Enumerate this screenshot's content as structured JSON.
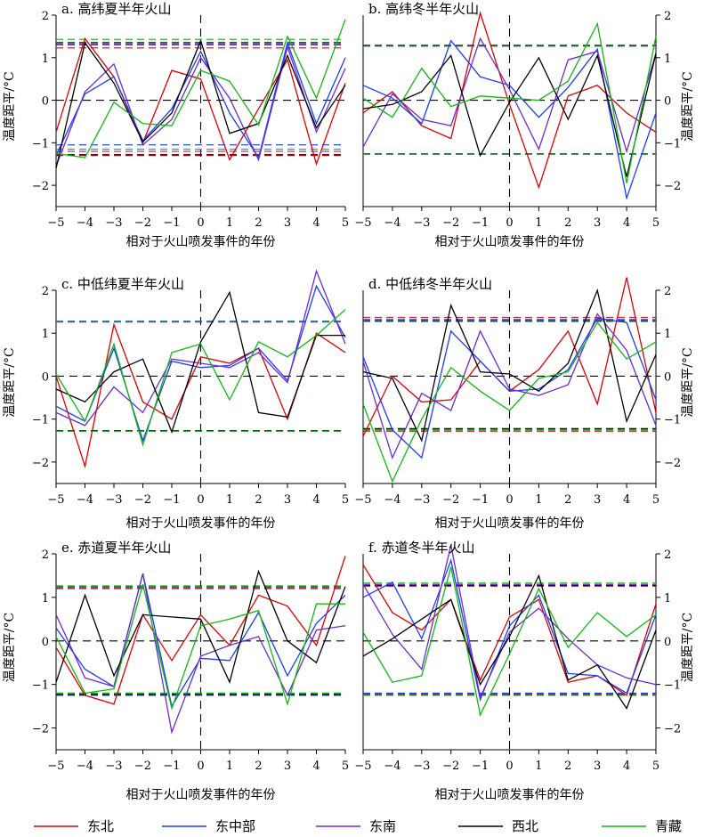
{
  "figure": {
    "colors": {
      "东北": "#e00000",
      "东中部": "#1a3cff",
      "东南": "#6a2bd6",
      "西北": "#000000",
      "青藏": "#12b812"
    },
    "legend": [
      "东北",
      "东中部",
      "东南",
      "西北",
      "青藏"
    ],
    "xlabel": "相对于火山喷发事件的年份",
    "ylabel": "温度距平/°C"
  },
  "chart_data": [
    {
      "type": "line",
      "title": "a. 高纬夏半年火山",
      "x": [
        -5,
        -4,
        -3,
        -2,
        -1,
        0,
        1,
        2,
        3,
        4,
        5
      ],
      "xticks": [
        "−5",
        "−4",
        "−3",
        "−2",
        "−1",
        "0",
        "1",
        "2",
        "3",
        "4",
        "5"
      ],
      "ylim": [
        -2.5,
        2
      ],
      "yticks": [
        "−2",
        "−1",
        "0",
        "1",
        "2"
      ],
      "yaxis_side": "left",
      "series": [
        {
          "name": "东北",
          "values": [
            -0.75,
            1.45,
            0.55,
            -1.0,
            0.7,
            0.5,
            -1.4,
            -0.2,
            0.95,
            -1.5,
            0.4
          ],
          "upper": 1.23,
          "lower": -1.3
        },
        {
          "name": "东中部",
          "values": [
            -1.3,
            0.15,
            0.55,
            -0.95,
            -0.2,
            1.15,
            -0.3,
            -1.35,
            1.35,
            -0.55,
            1.0
          ],
          "upper": 1.36,
          "lower": -1.05
        },
        {
          "name": "东南",
          "values": [
            -1.55,
            0.2,
            0.85,
            -1.05,
            -0.45,
            1.0,
            0.05,
            -1.4,
            1.25,
            -0.75,
            0.75
          ],
          "upper": 1.3,
          "lower": -1.2
        },
        {
          "name": "西北",
          "values": [
            -1.6,
            1.35,
            0.4,
            -0.98,
            -0.3,
            1.4,
            -0.78,
            -0.55,
            1.05,
            -0.65,
            0.35
          ],
          "upper": 1.33,
          "lower": -1.28
        },
        {
          "name": "青藏",
          "values": [
            -1.25,
            -1.35,
            -0.05,
            -0.55,
            -0.6,
            0.7,
            0.45,
            -0.58,
            1.5,
            0.05,
            1.9
          ],
          "upper": 1.43,
          "lower": -1.15
        }
      ]
    },
    {
      "type": "line",
      "title": "b. 高纬冬半年火山",
      "x": [
        -5,
        -4,
        -3,
        -2,
        -1,
        0,
        1,
        2,
        3,
        4,
        5
      ],
      "xticks": [
        "−5",
        "−4",
        "−3",
        "−2",
        "−1",
        "0",
        "1",
        "2",
        "3",
        "4",
        "5"
      ],
      "ylim": [
        -2.5,
        2
      ],
      "yticks": [
        "−2",
        "−1",
        "0",
        "1",
        "2"
      ],
      "yaxis_side": "right",
      "series": [
        {
          "name": "东北",
          "values": [
            -0.3,
            0.2,
            -0.6,
            -0.9,
            2.05,
            -0.1,
            -2.05,
            0.1,
            0.35,
            -0.3,
            -0.75
          ],
          "upper": 1.28,
          "lower": -1.27
        },
        {
          "name": "东中部",
          "values": [
            0.35,
            0.05,
            -0.55,
            1.4,
            0.55,
            0.35,
            -0.4,
            0.3,
            1.2,
            -2.3,
            -0.3
          ],
          "upper": 1.27,
          "lower": -1.26
        },
        {
          "name": "东南",
          "values": [
            -1.1,
            0.15,
            -0.45,
            -0.6,
            1.45,
            0.25,
            -1.15,
            0.95,
            1.15,
            -1.2,
            1.1
          ],
          "upper": 1.28,
          "lower": -1.27
        },
        {
          "name": "西北",
          "values": [
            -0.2,
            -0.1,
            0.2,
            1.05,
            -1.3,
            -0.05,
            1.0,
            -0.45,
            1.05,
            -1.8,
            1.1
          ],
          "upper": 1.29,
          "lower": -1.26
        },
        {
          "name": "青藏",
          "values": [
            0.05,
            -0.4,
            0.75,
            -0.15,
            0.1,
            0.05,
            0.0,
            0.45,
            1.8,
            -1.95,
            1.5
          ],
          "upper": 1.27,
          "lower": -1.27
        }
      ]
    },
    {
      "type": "line",
      "title": "c. 中低纬夏半年火山",
      "x": [
        -5,
        -4,
        -3,
        -2,
        -1,
        0,
        1,
        2,
        3,
        4,
        5
      ],
      "xticks": [
        "−5",
        "−4",
        "−3",
        "−2",
        "−1",
        "0",
        "1",
        "2",
        "3",
        "4",
        "5"
      ],
      "ylim": [
        -2.5,
        2
      ],
      "yticks": [
        "−2",
        "−1",
        "0",
        "1",
        "2"
      ],
      "yaxis_side": "left",
      "series": [
        {
          "name": "东北",
          "values": [
            0.0,
            -2.1,
            1.2,
            -0.6,
            -1.0,
            0.45,
            0.3,
            0.65,
            -1.0,
            1.0,
            0.55
          ],
          "upper": 1.27,
          "lower": -1.27
        },
        {
          "name": "东中部",
          "values": [
            -0.7,
            -1.05,
            0.65,
            -1.5,
            0.35,
            0.2,
            0.25,
            0.65,
            -0.1,
            2.1,
            0.9
          ],
          "upper": 1.28,
          "lower": -1.27
        },
        {
          "name": "东南",
          "values": [
            -0.85,
            -1.15,
            -0.25,
            -0.85,
            0.4,
            0.3,
            0.2,
            0.55,
            -0.15,
            2.45,
            0.75
          ],
          "upper": 1.26,
          "lower": -1.28
        },
        {
          "name": "西北",
          "values": [
            -0.3,
            -0.6,
            0.1,
            0.4,
            -1.3,
            0.8,
            1.95,
            -0.85,
            -0.95,
            0.95,
            0.95
          ],
          "upper": 1.27,
          "lower": -1.27
        },
        {
          "name": "青藏",
          "values": [
            0.05,
            -1.05,
            0.75,
            -1.6,
            0.55,
            0.75,
            -0.55,
            0.8,
            0.45,
            0.95,
            1.55
          ],
          "upper": 1.27,
          "lower": -1.28
        }
      ]
    },
    {
      "type": "line",
      "title": "d. 中低纬冬半年火山",
      "x": [
        -5,
        -4,
        -3,
        -2,
        -1,
        0,
        1,
        2,
        3,
        4,
        5
      ],
      "xticks": [
        "−5",
        "−4",
        "−3",
        "−2",
        "−1",
        "0",
        "1",
        "2",
        "3",
        "4",
        "5"
      ],
      "ylim": [
        -2.5,
        2
      ],
      "yticks": [
        "−2",
        "−1",
        "0",
        "1",
        "2"
      ],
      "yaxis_side": "right",
      "series": [
        {
          "name": "东北",
          "values": [
            -1.4,
            0.0,
            -0.6,
            -0.55,
            0.35,
            -0.35,
            0.15,
            1.05,
            -0.65,
            2.3,
            -0.85
          ],
          "upper": 1.37,
          "lower": -1.28
        },
        {
          "name": "东中部",
          "values": [
            0.45,
            -1.25,
            -1.9,
            1.05,
            0.35,
            -0.35,
            -0.3,
            0.15,
            1.35,
            1.25,
            -0.55
          ],
          "upper": 1.32,
          "lower": -1.25
        },
        {
          "name": "东南",
          "values": [
            0.35,
            -1.9,
            -0.4,
            -0.8,
            1.05,
            -0.3,
            -0.45,
            -0.2,
            1.45,
            0.6,
            -1.15
          ],
          "upper": 1.3,
          "lower": -1.23
        },
        {
          "name": "西北",
          "values": [
            0.1,
            -0.05,
            -1.5,
            1.65,
            0.1,
            0.05,
            -0.35,
            0.3,
            2.0,
            -1.05,
            0.5
          ],
          "upper": 1.28,
          "lower": -1.22
        },
        {
          "name": "青藏",
          "values": [
            -0.65,
            -2.45,
            -1.0,
            0.2,
            -0.35,
            -0.8,
            -0.05,
            0.1,
            1.25,
            0.4,
            0.8
          ],
          "upper": 1.27,
          "lower": -1.25
        }
      ]
    },
    {
      "type": "line",
      "title": "e. 赤道夏半年火山",
      "x": [
        -5,
        -4,
        -3,
        -2,
        -1,
        0,
        1,
        2,
        3,
        4,
        5
      ],
      "xticks": [
        "−5",
        "−4",
        "−3",
        "−2",
        "−1",
        "0",
        "1",
        "2",
        "3",
        "4",
        "5"
      ],
      "ylim": [
        -2.5,
        2
      ],
      "yticks": [
        "−2",
        "−1",
        "0",
        "1",
        "2"
      ],
      "yaxis_side": "left",
      "series": [
        {
          "name": "东北",
          "values": [
            -0.15,
            -1.25,
            -1.45,
            0.6,
            -0.45,
            0.6,
            -0.1,
            1.05,
            0.8,
            -0.1,
            1.95
          ],
          "upper": 1.2,
          "lower": -1.2
        },
        {
          "name": "东中部",
          "values": [
            0.3,
            -0.65,
            -1.05,
            1.55,
            -1.5,
            -0.4,
            -0.45,
            0.65,
            -0.8,
            0.4,
            1.05
          ],
          "upper": 1.23,
          "lower": -1.25
        },
        {
          "name": "东南",
          "values": [
            0.6,
            -0.85,
            -1.05,
            1.55,
            -2.1,
            -0.35,
            -0.1,
            0.1,
            -1.25,
            0.25,
            0.35
          ],
          "upper": 1.23,
          "lower": -1.22
        },
        {
          "name": "西北",
          "values": [
            -0.95,
            1.05,
            -0.8,
            0.6,
            0.55,
            0.5,
            -0.95,
            1.6,
            0.0,
            -0.5,
            1.25
          ],
          "upper": 1.26,
          "lower": -1.23
        },
        {
          "name": "青藏",
          "values": [
            0.1,
            -1.2,
            -1.1,
            1.3,
            -1.55,
            0.35,
            0.5,
            0.7,
            -1.45,
            0.85,
            0.85
          ],
          "upper": 1.25,
          "lower": -1.2
        }
      ]
    },
    {
      "type": "line",
      "title": "f. 赤道冬半年火山",
      "x": [
        -5,
        -4,
        -3,
        -2,
        -1,
        0,
        1,
        2,
        3,
        4,
        5
      ],
      "xticks": [
        "−5",
        "−4",
        "−3",
        "−2",
        "−1",
        "0",
        "1",
        "2",
        "3",
        "4",
        "5"
      ],
      "ylim": [
        -2.5,
        2
      ],
      "yticks": [
        "−2",
        "−1",
        "0",
        "1",
        "2"
      ],
      "yaxis_side": "right",
      "series": [
        {
          "name": "东北",
          "values": [
            1.75,
            0.65,
            0.25,
            0.95,
            -0.9,
            0.55,
            0.95,
            -0.95,
            -0.8,
            -1.25,
            0.85
          ],
          "upper": 1.26,
          "lower": -1.23
        },
        {
          "name": "东中部",
          "values": [
            1.0,
            1.35,
            0.05,
            1.85,
            -1.35,
            0.35,
            1.05,
            -0.75,
            -0.8,
            -1.2,
            0.6
          ],
          "upper": 1.28,
          "lower": -1.2
        },
        {
          "name": "东南",
          "values": [
            1.3,
            0.15,
            -0.65,
            2.2,
            -1.3,
            0.2,
            0.75,
            0.05,
            -0.55,
            -0.85,
            -1.0
          ],
          "upper": 1.3,
          "lower": -1.22
        },
        {
          "name": "西北",
          "values": [
            -0.35,
            0.05,
            0.5,
            0.95,
            -1.0,
            0.1,
            1.5,
            -0.9,
            -0.55,
            -1.55,
            0.25
          ],
          "upper": 1.27,
          "lower": -1.25
        },
        {
          "name": "青藏",
          "values": [
            0.2,
            -0.95,
            -0.8,
            1.7,
            -1.7,
            -0.3,
            1.2,
            -0.15,
            0.65,
            0.1,
            0.6
          ],
          "upper": 1.33,
          "lower": -1.25
        }
      ]
    }
  ]
}
